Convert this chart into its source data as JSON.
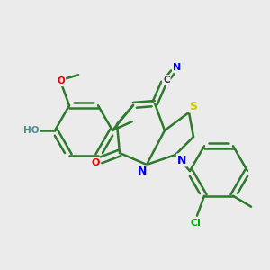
{
  "background_color": "#ebebeb",
  "bond_color": "#2d7a2d",
  "bond_width": 1.8,
  "fig_width": 3.0,
  "fig_height": 3.0,
  "dpi": 100,
  "colors": {
    "C": "#2d7a2d",
    "N": "#0000ee",
    "O": "#ee0000",
    "S": "#cccc00",
    "Cl": "#00aa00",
    "HO": "#4a9090",
    "bg": "#ebebeb"
  }
}
